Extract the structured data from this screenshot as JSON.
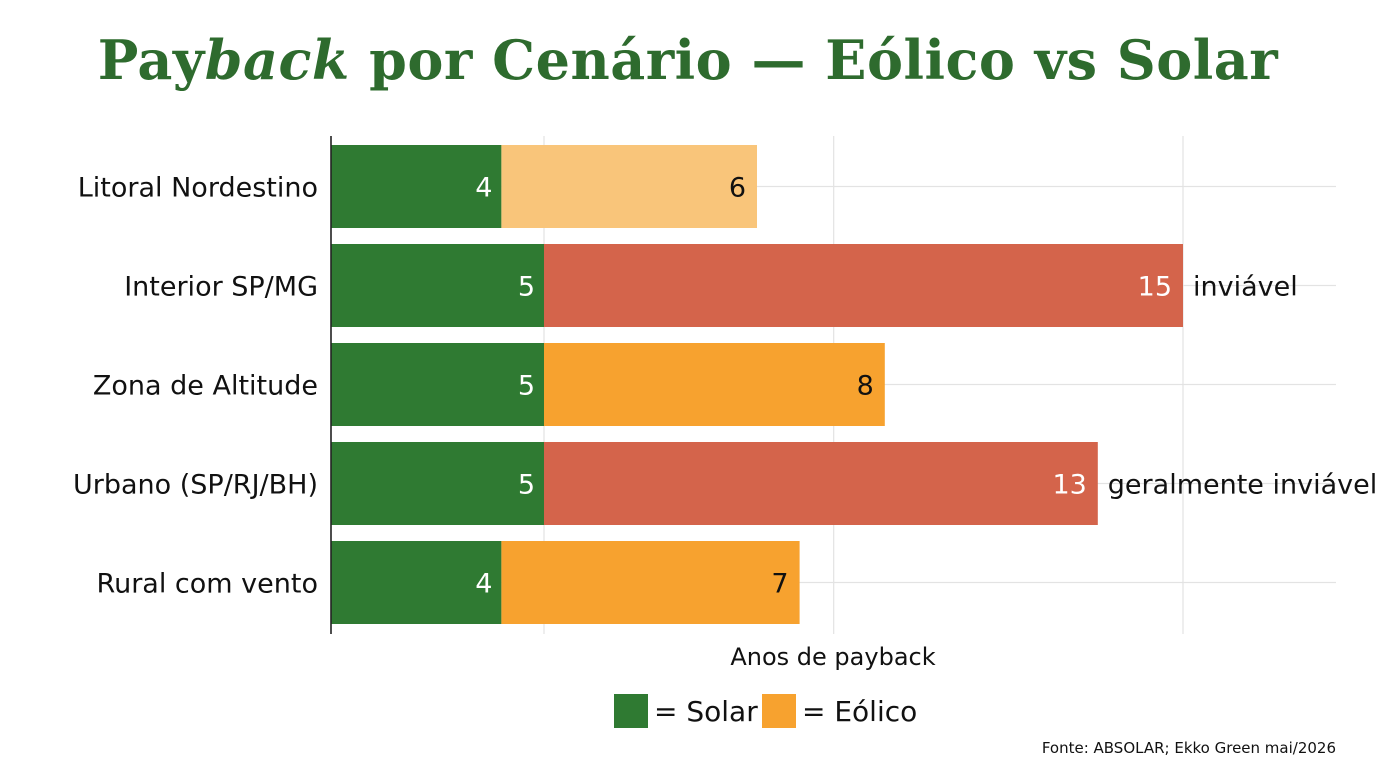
{
  "title_pre": "Pay",
  "title_italic": "back",
  "title_post": " por Cenário — Eólico vs Solar",
  "source": "Fonte: ABSOLAR; Ekko Green mai/2026",
  "chart_data": {
    "type": "bar",
    "orientation": "horizontal",
    "stacked": true,
    "title": "Payback por Cenário — Eólico vs Solar",
    "xlabel": "Anos de payback",
    "ylabel": "",
    "xlim": [
      0,
      20
    ],
    "grid": true,
    "categories": [
      "Litoral Nordestino",
      "Interior SP/MG",
      "Zona de Altitude",
      "Urbano (SP/RJ/BH)",
      "Rural com vento"
    ],
    "series": [
      {
        "name": "Solar",
        "values": [
          4,
          5,
          5,
          5,
          4
        ]
      },
      {
        "name": "Eólico",
        "values": [
          6,
          15,
          8,
          13,
          7
        ]
      }
    ],
    "annotations": [
      "",
      "inviável",
      "",
      "geralmente inviável",
      ""
    ],
    "legend": {
      "position": "bottom",
      "items": [
        {
          "label": "= Solar",
          "color": "#2f7a32"
        },
        {
          "label": "= Eólico",
          "color": "#f7a22f"
        }
      ]
    },
    "colors": {
      "solar": "#2f7a32",
      "eolico_light": "#f9c57a",
      "eolico": "#f7a22f",
      "eolico_inviavel": "#d4644b"
    },
    "eolico_bar_colors": [
      "#f9c57a",
      "#d4644b",
      "#f7a22f",
      "#d4644b",
      "#f7a22f"
    ]
  }
}
